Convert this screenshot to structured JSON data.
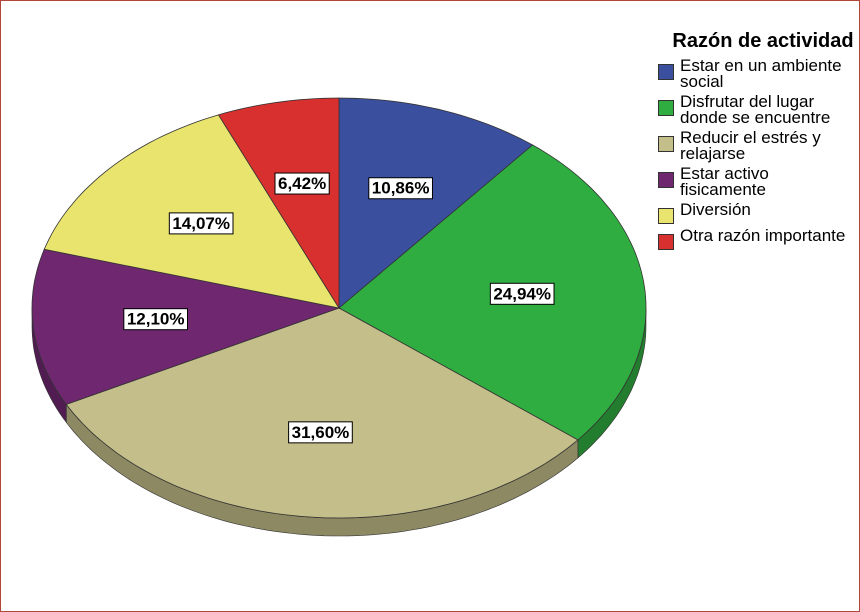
{
  "chart_data": {
    "type": "pie",
    "legend_title": "Razón de actividad",
    "categories": [
      "Estar en un ambiente social",
      "Disfrutar del lugar donde se encuentre",
      "Reducir el estrés y relajarse",
      "Estar activo fisicamente",
      "Diversión",
      "Otra razón importante"
    ],
    "values": [
      10.86,
      24.94,
      31.6,
      12.1,
      14.07,
      6.42
    ],
    "value_labels": [
      "10,86%",
      "24,94%",
      "31,60%",
      "12,10%",
      "14,07%",
      "6,42%"
    ],
    "colors": [
      "#3b4f9f",
      "#30ad40",
      "#c3be8a",
      "#6f2770",
      "#e9e46d",
      "#d8302f"
    ],
    "legend": "right"
  }
}
